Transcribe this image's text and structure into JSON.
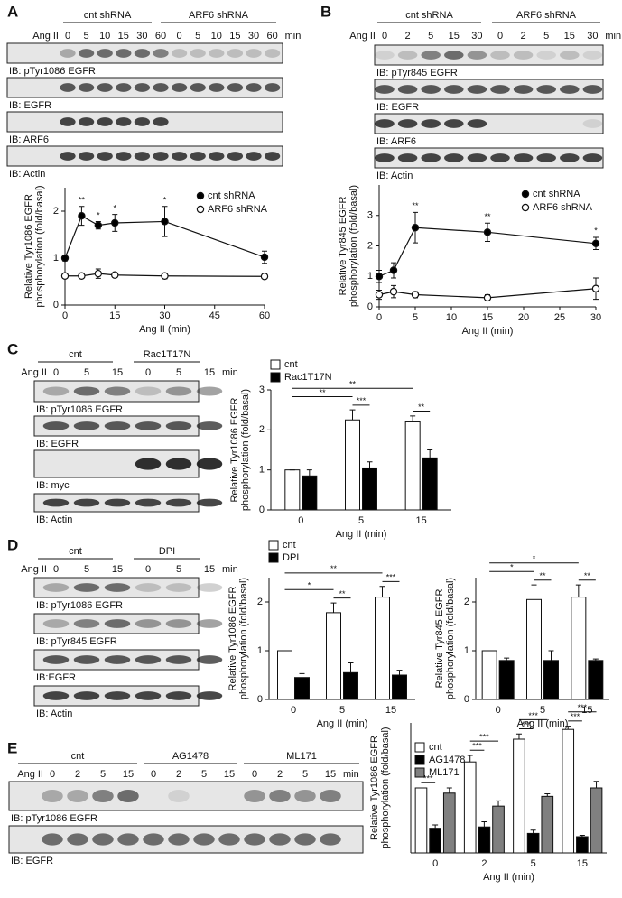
{
  "panels": [
    {
      "label": "A",
      "blot": {
        "groups": [
          "cnt shRNA",
          "ARF6 shRNA"
        ],
        "treatment": "Ang II",
        "lanes": [
          0,
          5,
          10,
          15,
          30,
          60,
          0,
          5,
          10,
          15,
          30,
          60
        ],
        "unit": "min",
        "rows": [
          "IB: pTyr1086 EGFR",
          "IB: EGFR",
          "IB: ARF6",
          "IB: Actin"
        ]
      }
    },
    {
      "label": "B",
      "blot": {
        "groups": [
          "cnt shRNA",
          "ARF6 shRNA"
        ],
        "treatment": "Ang II",
        "lanes": [
          0,
          2,
          5,
          15,
          30,
          0,
          2,
          5,
          15,
          30
        ],
        "unit": "min",
        "rows": [
          "IB: pTyr845 EGFR",
          "IB: EGFR",
          "IB: ARF6",
          "IB: Actin"
        ]
      }
    },
    {
      "label": "C",
      "blot": {
        "groups": [
          "cnt",
          "Rac1T17N"
        ],
        "treatment": "Ang II",
        "lanes": [
          0,
          5,
          15,
          0,
          5,
          15
        ],
        "unit": "min",
        "rows": [
          "IB: pTyr1086 EGFR",
          "IB: EGFR",
          "IB: myc",
          "IB: Actin"
        ]
      }
    },
    {
      "label": "D",
      "blot": {
        "groups": [
          "cnt",
          "DPI"
        ],
        "treatment": "Ang II",
        "lanes": [
          0,
          5,
          15,
          0,
          5,
          15
        ],
        "unit": "min",
        "rows": [
          "IB: pTyr1086 EGFR",
          "IB: pTyr845 EGFR",
          "IB:EGFR",
          "IB: Actin"
        ]
      }
    },
    {
      "label": "E",
      "blot": {
        "groups": [
          "cnt",
          "AG1478",
          "ML171"
        ],
        "treatment": "Ang II",
        "lanes": [
          0,
          2,
          5,
          15,
          0,
          2,
          5,
          15,
          0,
          2,
          5,
          15
        ],
        "unit": "min",
        "rows": [
          "IB: pTyr1086 EGFR",
          "IB: EGFR"
        ]
      }
    }
  ],
  "chart_data": [
    {
      "type": "line",
      "ylabel": [
        "Relative Tyr1086 EGFR",
        "phosphorylation (fold/basal)"
      ],
      "xlabel": "Ang II (min)",
      "x": [
        0,
        5,
        10,
        15,
        30,
        60
      ],
      "series": [
        {
          "name": "cnt shRNA",
          "color": "#000000",
          "values": [
            1.0,
            1.9,
            1.7,
            1.75,
            1.78,
            1.02
          ],
          "errors": [
            0.06,
            0.2,
            0.08,
            0.18,
            0.32,
            0.13
          ],
          "significance": [
            null,
            "**",
            "*",
            "*",
            "*",
            null
          ]
        },
        {
          "name": "ARF6 shRNA",
          "color": "#ffffff",
          "values": [
            0.62,
            0.62,
            0.67,
            0.64,
            0.62,
            0.61
          ],
          "errors": [
            0.04,
            0.04,
            0.1,
            0.04,
            0.06,
            0.03
          ]
        }
      ],
      "xlim": [
        0,
        60
      ],
      "ylim": [
        0,
        2.5
      ],
      "xticks": [
        0,
        15,
        30,
        45,
        60
      ],
      "yticks": [
        0,
        1,
        2
      ],
      "legend": true
    },
    {
      "type": "line",
      "ylabel": [
        "Relative Tyr845 EGFR",
        "phosphorylation (fold/basal)"
      ],
      "xlabel": "Ang II (min)",
      "x": [
        0,
        2,
        5,
        15,
        30
      ],
      "series": [
        {
          "name": "cnt shRNA",
          "color": "#000000",
          "values": [
            1.0,
            1.2,
            2.6,
            2.45,
            2.08
          ],
          "errors": [
            0.2,
            0.25,
            0.5,
            0.3,
            0.2
          ],
          "significance": [
            null,
            null,
            "**",
            "**",
            "*"
          ]
        },
        {
          "name": "ARF6 shRNA",
          "color": "#ffffff",
          "values": [
            0.4,
            0.5,
            0.4,
            0.3,
            0.6
          ],
          "errors": [
            0.15,
            0.2,
            0.1,
            0.1,
            0.35
          ]
        }
      ],
      "xlim": [
        0,
        30
      ],
      "ylim": [
        0,
        4
      ],
      "xticks": [
        0,
        5,
        10,
        15,
        20,
        25,
        30
      ],
      "yticks": [
        0,
        1,
        2,
        3
      ],
      "legend": true
    },
    {
      "type": "bar",
      "ylabel": [
        "Relative Tyr1086 EGFR",
        "phosphorylation (fold/basal)"
      ],
      "xlabel": "Ang II (min)",
      "categories": [
        0,
        5,
        15
      ],
      "series": [
        {
          "name": "cnt",
          "color": "#ffffff",
          "values": [
            1.0,
            2.25,
            2.2
          ],
          "errors": [
            0,
            0.25,
            0.15
          ]
        },
        {
          "name": "Rac1T17N",
          "color": "#000000",
          "values": [
            0.85,
            1.05,
            1.3
          ],
          "errors": [
            0.15,
            0.15,
            0.2
          ]
        }
      ],
      "ylim": [
        0,
        3
      ],
      "yticks": [
        0,
        1,
        2,
        3
      ],
      "legend": true,
      "brackets": [
        {
          "label": "**",
          "from": {
            "series": "cnt",
            "category": 0
          },
          "to": {
            "series": "cnt",
            "category": 15
          }
        },
        {
          "label": "**",
          "from": {
            "series": "cnt",
            "category": 0
          },
          "to": {
            "series": "cnt",
            "category": 5
          }
        },
        {
          "label": "***",
          "from": {
            "series": "cnt",
            "category": 5
          },
          "to": {
            "series": "Rac1T17N",
            "category": 5
          }
        },
        {
          "label": "**",
          "from": {
            "series": "cnt",
            "category": 15
          },
          "to": {
            "series": "Rac1T17N",
            "category": 15
          }
        }
      ]
    },
    {
      "type": "bar",
      "ylabel": [
        "Relative Tyr1086 EGFR",
        "phosphorylation (fold/basal)"
      ],
      "xlabel": "Ang II (min)",
      "categories": [
        0,
        5,
        15
      ],
      "series": [
        {
          "name": "cnt",
          "color": "#ffffff",
          "values": [
            1.0,
            1.78,
            2.1
          ],
          "errors": [
            0,
            0.2,
            0.22
          ]
        },
        {
          "name": "DPI",
          "color": "#000000",
          "values": [
            0.45,
            0.55,
            0.5
          ],
          "errors": [
            0.08,
            0.2,
            0.1
          ]
        }
      ],
      "ylim": [
        0,
        2.5
      ],
      "yticks": [
        0,
        1,
        2
      ],
      "legend": true,
      "brackets": [
        {
          "label": "**",
          "from": {
            "series": "cnt",
            "category": 0
          },
          "to": {
            "series": "cnt",
            "category": 15
          }
        },
        {
          "label": "*",
          "from": {
            "series": "cnt",
            "category": 0
          },
          "to": {
            "series": "cnt",
            "category": 5
          }
        },
        {
          "label": "**",
          "from": {
            "series": "cnt",
            "category": 5
          },
          "to": {
            "series": "DPI",
            "category": 5
          }
        },
        {
          "label": "***",
          "from": {
            "series": "cnt",
            "category": 15
          },
          "to": {
            "series": "DPI",
            "category": 15
          }
        }
      ]
    },
    {
      "type": "bar",
      "ylabel": [
        "Relative Tyr845 EGFR",
        "phosphorylation (fold/basal)"
      ],
      "xlabel": "Ang II (min)",
      "categories": [
        0,
        5,
        15
      ],
      "series": [
        {
          "name": "cnt",
          "color": "#ffffff",
          "values": [
            1.0,
            2.05,
            2.1
          ],
          "errors": [
            0,
            0.3,
            0.25
          ]
        },
        {
          "name": "DPI",
          "color": "#000000",
          "values": [
            0.8,
            0.8,
            0.8
          ],
          "errors": [
            0.05,
            0.2,
            0.03
          ]
        }
      ],
      "ylim": [
        0,
        2.5
      ],
      "yticks": [
        0,
        1,
        2
      ],
      "legend": false,
      "brackets": [
        {
          "label": "*",
          "from": {
            "series": "cnt",
            "category": 0
          },
          "to": {
            "series": "cnt",
            "category": 15
          }
        },
        {
          "label": "*",
          "from": {
            "series": "cnt",
            "category": 0
          },
          "to": {
            "series": "cnt",
            "category": 5
          }
        },
        {
          "label": "**",
          "from": {
            "series": "cnt",
            "category": 5
          },
          "to": {
            "series": "DPI",
            "category": 5
          }
        },
        {
          "label": "**",
          "from": {
            "series": "cnt",
            "category": 15
          },
          "to": {
            "series": "DPI",
            "category": 15
          }
        }
      ]
    },
    {
      "type": "bar",
      "ylabel": [
        "Relative Tyr1086 EGFR",
        "phosphorylation (fold/basal)"
      ],
      "xlabel": "Ang II (min)",
      "categories": [
        0,
        2,
        5,
        15
      ],
      "series": [
        {
          "name": "cnt",
          "color": "#ffffff",
          "values": [
            1.0,
            1.4,
            1.75,
            1.9
          ],
          "errors": [
            0,
            0.1,
            0.08,
            0.05
          ]
        },
        {
          "name": "AG1478",
          "color": "#000000",
          "values": [
            0.38,
            0.4,
            0.3,
            0.25
          ],
          "errors": [
            0.05,
            0.08,
            0.05,
            0.02
          ]
        },
        {
          "name": "ML171",
          "color": "#808080",
          "values": [
            0.92,
            0.72,
            0.87,
            1.0
          ],
          "errors": [
            0.08,
            0.08,
            0.04,
            0.1
          ]
        }
      ],
      "ylim": [
        0,
        2
      ],
      "legend": true,
      "brackets": [
        {
          "label": "***",
          "from": {
            "series": "cnt",
            "category": 0
          },
          "to": {
            "series": "AG1478",
            "category": 0
          }
        },
        {
          "label": "***",
          "from": {
            "series": "cnt",
            "category": 2
          },
          "to": {
            "series": "AG1478",
            "category": 2
          }
        },
        {
          "label": "***",
          "from": {
            "series": "cnt",
            "category": 2
          },
          "to": {
            "series": "ML171",
            "category": 2
          }
        },
        {
          "label": "***",
          "from": {
            "series": "cnt",
            "category": 5
          },
          "to": {
            "series": "AG1478",
            "category": 5
          }
        },
        {
          "label": "***",
          "from": {
            "series": "cnt",
            "category": 5
          },
          "to": {
            "series": "ML171",
            "category": 5
          }
        },
        {
          "label": "***",
          "from": {
            "series": "cnt",
            "category": 15
          },
          "to": {
            "series": "AG1478",
            "category": 15
          }
        },
        {
          "label": "***",
          "from": {
            "series": "cnt",
            "category": 15
          },
          "to": {
            "series": "ML171",
            "category": 15
          }
        }
      ]
    }
  ]
}
